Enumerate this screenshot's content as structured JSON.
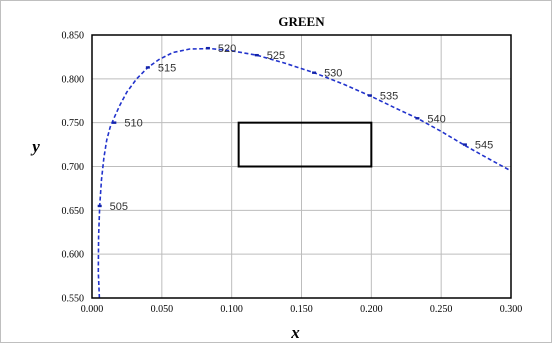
{
  "chart_data": {
    "type": "line",
    "title": "GREEN",
    "xlabel": "x",
    "ylabel": "y",
    "xlim": [
      0.0,
      0.3
    ],
    "ylim": [
      0.55,
      0.85
    ],
    "xticks": [
      "0.000",
      "0.050",
      "0.100",
      "0.150",
      "0.200",
      "0.250",
      "0.300"
    ],
    "yticks": [
      "0.550",
      "0.600",
      "0.650",
      "0.700",
      "0.750",
      "0.800",
      "0.850"
    ],
    "grid": true,
    "series": [
      {
        "name": "",
        "style": "dashed",
        "color": "#2233cc",
        "x": [
          0.0053,
          0.0045,
          0.0047,
          0.0055,
          0.0068,
          0.0085,
          0.0105,
          0.013,
          0.016,
          0.02,
          0.025,
          0.032,
          0.04,
          0.048,
          0.058,
          0.07,
          0.085,
          0.1,
          0.118,
          0.138,
          0.159,
          0.18,
          0.2,
          0.218,
          0.233,
          0.25,
          0.268,
          0.285,
          0.3
        ],
        "y": [
          0.55,
          0.58,
          0.62,
          0.655,
          0.685,
          0.71,
          0.73,
          0.745,
          0.756,
          0.77,
          0.785,
          0.8,
          0.813,
          0.822,
          0.83,
          0.834,
          0.8345,
          0.832,
          0.827,
          0.818,
          0.807,
          0.794,
          0.78,
          0.766,
          0.755,
          0.74,
          0.723,
          0.708,
          0.695
        ]
      }
    ],
    "wavelength_points": [
      {
        "label": "505",
        "x": 0.0055,
        "y": 0.655
      },
      {
        "label": "510",
        "x": 0.016,
        "y": 0.75
      },
      {
        "label": "515",
        "x": 0.04,
        "y": 0.813
      },
      {
        "label": "520",
        "x": 0.083,
        "y": 0.835
      },
      {
        "label": "525",
        "x": 0.118,
        "y": 0.827
      },
      {
        "label": "530",
        "x": 0.159,
        "y": 0.807
      },
      {
        "label": "535",
        "x": 0.199,
        "y": 0.781
      },
      {
        "label": "540",
        "x": 0.233,
        "y": 0.755
      },
      {
        "label": "545",
        "x": 0.267,
        "y": 0.725
      }
    ],
    "region_rectangle": {
      "x": [
        0.105,
        0.2
      ],
      "y": [
        0.7,
        0.75
      ]
    }
  }
}
